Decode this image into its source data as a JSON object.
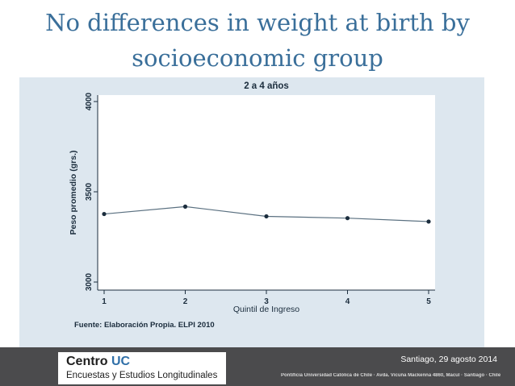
{
  "slide": {
    "title_line1": "No differences in weight at birth by",
    "title_line2": "socioeconomic group"
  },
  "chart_data": {
    "type": "line",
    "title": "2 a 4 años",
    "xlabel": "Quintil de Ingreso",
    "ylabel": "Peso promedio (grs.)",
    "x": [
      1,
      2,
      3,
      4,
      5
    ],
    "series": [
      {
        "values": [
          3377,
          3418,
          3364,
          3354,
          3335
        ]
      }
    ],
    "xlim": [
      1,
      5
    ],
    "ylim": [
      3000,
      4000
    ],
    "yticks": [
      3000,
      3500,
      4000
    ],
    "xticks": [
      1,
      2,
      3,
      4,
      5
    ],
    "grid": false,
    "source_note": "Fuente: Elaboración Propia. ELPI 2010",
    "colors": {
      "line": "#5a7080",
      "marker": "#1b2d3d",
      "panel": "#dde7ef"
    }
  },
  "footer": {
    "logo_main": "Centro ",
    "logo_accent": "UC",
    "logo_sub": "Encuestas y Estudios Longitudinales",
    "date": "Santiago, 29 agosto 2014",
    "address": "Pontificia Universidad Católica de Chile · Avda. Vicuña Mackenna 4860, Macul · Santiago · Chile"
  }
}
